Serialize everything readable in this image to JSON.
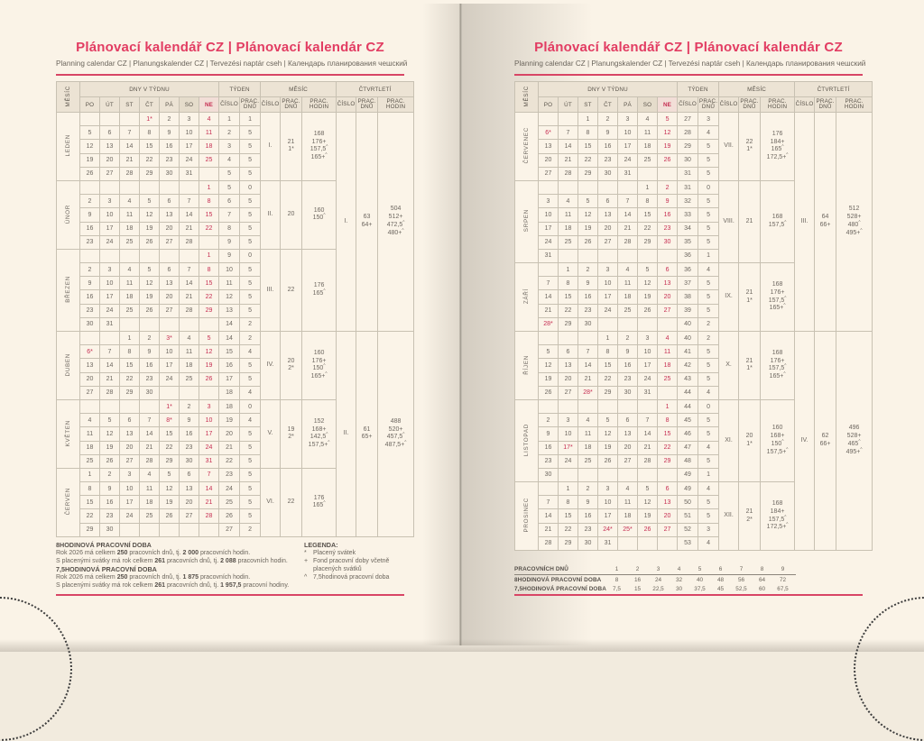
{
  "page": {
    "title": "Plánovací kalendář CZ | Plánovací kalendár CZ",
    "subtitle": "Planning calendar CZ | Planungskalender CZ | Tervezési naptár cseh | Календарь планирования чешский"
  },
  "header": {
    "month_col": "MĚSÍC",
    "days_group": "DNY V TÝDNU",
    "days": [
      "PO",
      "ÚT",
      "ST",
      "ČT",
      "PÁ",
      "SO",
      "NE"
    ],
    "week_group": "TÝDEN",
    "month_group": "MĚSÍC",
    "quarter_group": "ČTVRTLETÍ",
    "cislo": "ČÍSLO",
    "prac_dnu": "PRAC.\nDNŮ",
    "prac_hodin": "PRAC.\nHODIN"
  },
  "left_months": [
    {
      "name": "LEDEN",
      "cislo": "I.",
      "dnu": "21\n1*",
      "hodin": "168\n176+\n157,5^\n165+^",
      "weeks": [
        [
          "",
          "",
          "",
          "~1*",
          "2",
          "3",
          "4",
          "1",
          "1"
        ],
        [
          "5",
          "6",
          "7",
          "8",
          "9",
          "10",
          "11",
          "2",
          "5"
        ],
        [
          "12",
          "13",
          "14",
          "15",
          "16",
          "17",
          "18",
          "3",
          "5"
        ],
        [
          "19",
          "20",
          "21",
          "22",
          "23",
          "24",
          "25",
          "4",
          "5"
        ],
        [
          "26",
          "27",
          "28",
          "29",
          "30",
          "31",
          "",
          "5",
          "5"
        ]
      ]
    },
    {
      "name": "ÚNOR",
      "cislo": "II.",
      "dnu": "20",
      "hodin": "160\n150^",
      "weeks": [
        [
          "",
          "",
          "",
          "",
          "",
          "",
          "1",
          "5",
          "0"
        ],
        [
          "2",
          "3",
          "4",
          "5",
          "6",
          "7",
          "8",
          "6",
          "5"
        ],
        [
          "9",
          "10",
          "11",
          "12",
          "13",
          "14",
          "15",
          "7",
          "5"
        ],
        [
          "16",
          "17",
          "18",
          "19",
          "20",
          "21",
          "22",
          "8",
          "5"
        ],
        [
          "23",
          "24",
          "25",
          "26",
          "27",
          "28",
          "",
          "9",
          "5"
        ]
      ]
    },
    {
      "name": "BŘEZEN",
      "cislo": "III.",
      "dnu": "22",
      "hodin": "176\n165^",
      "weeks": [
        [
          "",
          "",
          "",
          "",
          "",
          "",
          "1",
          "9",
          "0"
        ],
        [
          "2",
          "3",
          "4",
          "5",
          "6",
          "7",
          "8",
          "10",
          "5"
        ],
        [
          "9",
          "10",
          "11",
          "12",
          "13",
          "14",
          "15",
          "11",
          "5"
        ],
        [
          "16",
          "17",
          "18",
          "19",
          "20",
          "21",
          "22",
          "12",
          "5"
        ],
        [
          "23",
          "24",
          "25",
          "26",
          "27",
          "28",
          "29",
          "13",
          "5"
        ],
        [
          "30",
          "31",
          "",
          "",
          "",
          "",
          "",
          "14",
          "2"
        ]
      ]
    },
    {
      "name": "DUBEN",
      "cislo": "IV.",
      "dnu": "20\n2*",
      "hodin": "160\n176+\n150^\n165+^",
      "weeks": [
        [
          "",
          "",
          "1",
          "2",
          "~3*",
          "4",
          "5",
          "14",
          "2"
        ],
        [
          "~6*",
          "7",
          "8",
          "9",
          "10",
          "11",
          "12",
          "15",
          "4"
        ],
        [
          "13",
          "14",
          "15",
          "16",
          "17",
          "18",
          "19",
          "16",
          "5"
        ],
        [
          "20",
          "21",
          "22",
          "23",
          "24",
          "25",
          "26",
          "17",
          "5"
        ],
        [
          "27",
          "28",
          "29",
          "30",
          "",
          "",
          "",
          "18",
          "4"
        ]
      ]
    },
    {
      "name": "KVĚTEN",
      "cislo": "V.",
      "dnu": "19\n2*",
      "hodin": "152\n168+\n142,5^\n157,5+^",
      "weeks": [
        [
          "",
          "",
          "",
          "",
          "~1*",
          "2",
          "3",
          "18",
          "0"
        ],
        [
          "4",
          "5",
          "6",
          "7",
          "~8*",
          "9",
          "10",
          "19",
          "4"
        ],
        [
          "11",
          "12",
          "13",
          "14",
          "15",
          "16",
          "17",
          "20",
          "5"
        ],
        [
          "18",
          "19",
          "20",
          "21",
          "22",
          "23",
          "24",
          "21",
          "5"
        ],
        [
          "25",
          "26",
          "27",
          "28",
          "29",
          "30",
          "31",
          "22",
          "5"
        ]
      ]
    },
    {
      "name": "ČERVEN",
      "cislo": "VI.",
      "dnu": "22",
      "hodin": "176\n165^",
      "weeks": [
        [
          "1",
          "2",
          "3",
          "4",
          "5",
          "6",
          "7",
          "23",
          "5"
        ],
        [
          "8",
          "9",
          "10",
          "11",
          "12",
          "13",
          "14",
          "24",
          "5"
        ],
        [
          "15",
          "16",
          "17",
          "18",
          "19",
          "20",
          "21",
          "25",
          "5"
        ],
        [
          "22",
          "23",
          "24",
          "25",
          "26",
          "27",
          "28",
          "26",
          "5"
        ],
        [
          "29",
          "30",
          "",
          "",
          "",
          "",
          "",
          "27",
          "2"
        ]
      ]
    }
  ],
  "left_quarters": [
    {
      "cislo": "I.",
      "dnu": "63\n64+",
      "hodin": "504\n512+\n472,5^\n480+^"
    },
    {
      "cislo": "II.",
      "dnu": "61\n65+",
      "hodin": "488\n520+\n457,5^\n487,5+^"
    }
  ],
  "right_months": [
    {
      "name": "ČERVENEC",
      "cislo": "VII.",
      "dnu": "22\n1*",
      "hodin": "176\n184+\n165^\n172,5+^",
      "weeks": [
        [
          "",
          "",
          "1",
          "2",
          "3",
          "4",
          "~5",
          "27",
          "3"
        ],
        [
          "~6*",
          "7",
          "8",
          "9",
          "10",
          "11",
          "12",
          "28",
          "4"
        ],
        [
          "13",
          "14",
          "15",
          "16",
          "17",
          "18",
          "19",
          "29",
          "5"
        ],
        [
          "20",
          "21",
          "22",
          "23",
          "24",
          "25",
          "26",
          "30",
          "5"
        ],
        [
          "27",
          "28",
          "29",
          "30",
          "31",
          "",
          "",
          "31",
          "5"
        ]
      ]
    },
    {
      "name": "SRPEN",
      "cislo": "VIII.",
      "dnu": "21",
      "hodin": "168\n157,5^",
      "weeks": [
        [
          "",
          "",
          "",
          "",
          "",
          "1",
          "2",
          "31",
          "0"
        ],
        [
          "3",
          "4",
          "5",
          "6",
          "7",
          "8",
          "9",
          "32",
          "5"
        ],
        [
          "10",
          "11",
          "12",
          "13",
          "14",
          "15",
          "16",
          "33",
          "5"
        ],
        [
          "17",
          "18",
          "19",
          "20",
          "21",
          "22",
          "23",
          "34",
          "5"
        ],
        [
          "24",
          "25",
          "26",
          "27",
          "28",
          "29",
          "30",
          "35",
          "5"
        ],
        [
          "31",
          "",
          "",
          "",
          "",
          "",
          "",
          "36",
          "1"
        ]
      ]
    },
    {
      "name": "ZÁŘÍ",
      "cislo": "IX.",
      "dnu": "21\n1*",
      "hodin": "168\n176+\n157,5^\n165+^",
      "weeks": [
        [
          "",
          "1",
          "2",
          "3",
          "4",
          "5",
          "6",
          "36",
          "4"
        ],
        [
          "7",
          "8",
          "9",
          "10",
          "11",
          "12",
          "13",
          "37",
          "5"
        ],
        [
          "14",
          "15",
          "16",
          "17",
          "18",
          "19",
          "20",
          "38",
          "5"
        ],
        [
          "21",
          "22",
          "23",
          "24",
          "25",
          "26",
          "27",
          "39",
          "5"
        ],
        [
          "~28*",
          "29",
          "30",
          "",
          "",
          "",
          "",
          "40",
          "2"
        ]
      ]
    },
    {
      "name": "ŘÍJEN",
      "cislo": "X.",
      "dnu": "21\n1*",
      "hodin": "168\n176+\n157,5^\n165+^",
      "weeks": [
        [
          "",
          "",
          "",
          "1",
          "2",
          "3",
          "4",
          "40",
          "2"
        ],
        [
          "5",
          "6",
          "7",
          "8",
          "9",
          "10",
          "11",
          "41",
          "5"
        ],
        [
          "12",
          "13",
          "14",
          "15",
          "16",
          "17",
          "18",
          "42",
          "5"
        ],
        [
          "19",
          "20",
          "21",
          "22",
          "23",
          "24",
          "25",
          "43",
          "5"
        ],
        [
          "26",
          "27",
          "~28*",
          "29",
          "30",
          "31",
          "",
          "44",
          "4"
        ]
      ]
    },
    {
      "name": "LISTOPAD",
      "cislo": "XI.",
      "dnu": "20\n1*",
      "hodin": "160\n168+\n150^\n157,5+^",
      "weeks": [
        [
          "",
          "",
          "",
          "",
          "",
          "",
          "1",
          "44",
          "0"
        ],
        [
          "2",
          "3",
          "4",
          "5",
          "6",
          "7",
          "8",
          "45",
          "5"
        ],
        [
          "9",
          "10",
          "11",
          "12",
          "13",
          "14",
          "15",
          "46",
          "5"
        ],
        [
          "16",
          "~17*",
          "18",
          "19",
          "20",
          "21",
          "22",
          "47",
          "4"
        ],
        [
          "23",
          "24",
          "25",
          "26",
          "27",
          "28",
          "29",
          "48",
          "5"
        ],
        [
          "30",
          "",
          "",
          "",
          "",
          "",
          "",
          "49",
          "1"
        ]
      ]
    },
    {
      "name": "PROSINEC",
      "cislo": "XII.",
      "dnu": "21\n2*",
      "hodin": "168\n184+\n157,5^\n172,5+^",
      "weeks": [
        [
          "",
          "1",
          "2",
          "3",
          "4",
          "5",
          "6",
          "49",
          "4"
        ],
        [
          "7",
          "8",
          "9",
          "10",
          "11",
          "12",
          "13",
          "50",
          "5"
        ],
        [
          "14",
          "15",
          "16",
          "17",
          "18",
          "19",
          "20",
          "51",
          "5"
        ],
        [
          "21",
          "22",
          "23",
          "~24*",
          "~25*",
          "~26",
          "27",
          "52",
          "3"
        ],
        [
          "28",
          "29",
          "30",
          "31",
          "",
          "",
          "",
          "53",
          "4"
        ]
      ]
    }
  ],
  "right_quarters": [
    {
      "cislo": "III.",
      "dnu": "64\n66+",
      "hodin": "512\n528+\n480^\n495+^"
    },
    {
      "cislo": "IV.",
      "dnu": "62\n66+",
      "hodin": "496\n528+\n465^\n495+^"
    }
  ],
  "footer_left": {
    "sections": [
      {
        "title": "8HODINOVÁ PRACOVNÍ DOBA",
        "lines": [
          [
            "Rok 2026 má celkem ",
            "250",
            " pracovních dnů, tj. ",
            "2 000",
            " pracovních hodin."
          ],
          [
            "S placenými svátky má rok celkem ",
            "261",
            " pracovních dnů, tj. ",
            "2 088",
            " pracovních hodin."
          ]
        ]
      },
      {
        "title": "7,5HODINOVÁ PRACOVNÍ DOBA",
        "lines": [
          [
            "Rok 2026 má celkem ",
            "250",
            " pracovních dnů, tj. ",
            "1 875",
            " pracovních hodin."
          ],
          [
            "S placenými svátky má rok celkem ",
            "261",
            " pracovních dnů, tj. ",
            "1 957,5",
            " pracovní hodiny."
          ]
        ]
      }
    ]
  },
  "legend": {
    "title": "LEGENDA:",
    "items": [
      [
        "*",
        "Placený svátek"
      ],
      [
        "+",
        "Fond pracovní doby včetně placených svátků"
      ],
      [
        "^",
        "7,5hodinová pracovní doba"
      ]
    ]
  },
  "footer_right": {
    "rows": [
      [
        "PRACOVNÍCH DNŮ",
        "1",
        "2",
        "3",
        "4",
        "5",
        "6",
        "7",
        "8",
        "9"
      ],
      [
        "8HODINOVÁ PRACOVNÍ DOBA",
        "8",
        "16",
        "24",
        "32",
        "40",
        "48",
        "56",
        "64",
        "72"
      ],
      [
        "7,5HODINOVÁ PRACOVNÍ DOBA",
        "7,5",
        "15",
        "22,5",
        "30",
        "37,5",
        "45",
        "52,5",
        "60",
        "67,5"
      ]
    ]
  },
  "colors": {
    "title_pink": "#e23c62",
    "rule_red": "#d84565",
    "holiday_red": "#c62e52",
    "paper": "#fbf4e8",
    "holiday_bg": "#d9d2c3",
    "saturday_bg": "#eee7d8",
    "sunday_bg": "#f6e9e2"
  }
}
